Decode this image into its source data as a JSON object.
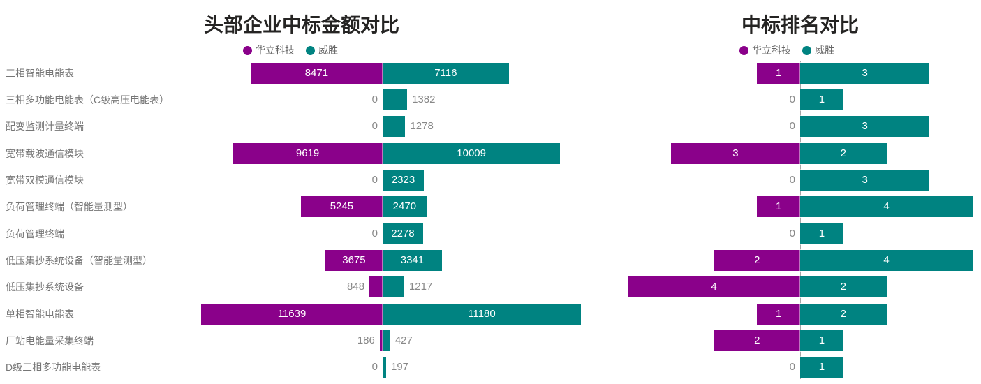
{
  "colors": {
    "series_huali": "#8A018A",
    "series_weisheng": "#008381",
    "title_text": "#252423",
    "legend_text": "#666666",
    "category_text": "#767676",
    "value_text_outside": "#888888",
    "value_text_inside": "#FFFFFF",
    "axis_line": "#A6A6A6",
    "background": "#FFFFFF"
  },
  "chart_data": [
    {
      "type": "bar",
      "variant": "diverging-horizontal-tornado",
      "title": "头部企业中标金额对比",
      "legend_position": "top",
      "legend": [
        "华立科技",
        "威胜"
      ],
      "value_labels": true,
      "show_category_labels": true,
      "grid": false,
      "xlim_left": [
        0,
        11639
      ],
      "xlim_right": [
        0,
        11180
      ],
      "categories": [
        "三相智能电能表",
        "三相多功能电能表（C级高压电能表）",
        "配变监测计量终端",
        "宽带载波通信模块",
        "宽带双模通信模块",
        "负荷管理终端（智能量测型）",
        "负荷管理终端",
        "低压集抄系统设备（智能量测型）",
        "低压集抄系统设备",
        "单相智能电能表",
        "厂站电能量采集终端",
        "D级三相多功能电能表"
      ],
      "series": [
        {
          "name": "华立科技",
          "key": "huali",
          "side": "left",
          "color": "#8A018A",
          "values": [
            8471,
            0,
            0,
            9619,
            0,
            5245,
            0,
            3675,
            848,
            11639,
            186,
            0
          ]
        },
        {
          "name": "威胜",
          "key": "weisheng",
          "side": "right",
          "color": "#008381",
          "values": [
            7116,
            1382,
            1278,
            10009,
            2323,
            2470,
            2278,
            3341,
            1217,
            11180,
            427,
            197
          ]
        }
      ]
    },
    {
      "type": "bar",
      "variant": "diverging-horizontal-tornado",
      "title": "中标排名对比",
      "legend_position": "top",
      "legend": [
        "华立科技",
        "威胜"
      ],
      "value_labels": true,
      "show_category_labels": false,
      "grid": false,
      "xlim_left": [
        0,
        4
      ],
      "xlim_right": [
        0,
        4
      ],
      "categories": [
        "三相智能电能表",
        "三相多功能电能表（C级高压电能表）",
        "配变监测计量终端",
        "宽带载波通信模块",
        "宽带双模通信模块",
        "负荷管理终端（智能量测型）",
        "负荷管理终端",
        "低压集抄系统设备（智能量测型）",
        "低压集抄系统设备",
        "单相智能电能表",
        "厂站电能量采集终端",
        "D级三相多功能电能表"
      ],
      "series": [
        {
          "name": "华立科技",
          "key": "huali",
          "side": "left",
          "color": "#8A018A",
          "values": [
            1,
            0,
            0,
            3,
            0,
            1,
            0,
            2,
            4,
            1,
            2,
            0
          ]
        },
        {
          "name": "威胜",
          "key": "weisheng",
          "side": "right",
          "color": "#008381",
          "values": [
            3,
            1,
            3,
            2,
            3,
            4,
            1,
            4,
            2,
            2,
            1,
            1
          ]
        }
      ]
    }
  ]
}
